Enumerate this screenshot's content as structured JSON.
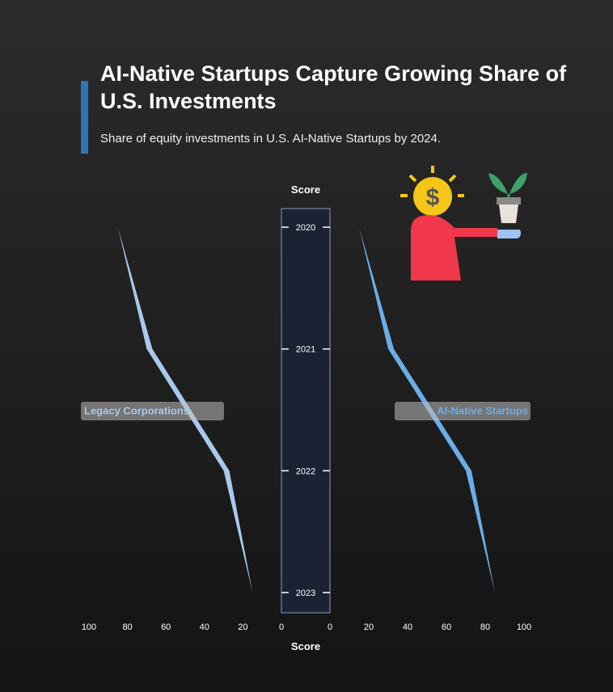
{
  "header": {
    "title": "AI-Native Startups Capture Growing Share of U.S. Investments",
    "subtitle": "Share of equity investments in U.S. AI-Native Startups by 2024."
  },
  "chart_data": {
    "type": "area",
    "layout": "mirrored-butterfly",
    "title": "AI-Native Startups Capture Growing Share of U.S. Investments",
    "subtitle": "Share of equity investments in U.S. AI-Native Startups by 2024.",
    "y_categories": [
      "2020",
      "2021",
      "2022",
      "2023"
    ],
    "axis_label": "Score",
    "left_series": {
      "name": "Legacy Corporations",
      "values": [
        85,
        70,
        30,
        15
      ],
      "color": "#a9c9ec",
      "xlim": [
        100,
        0
      ],
      "ticks": [
        100,
        80,
        60,
        40,
        20,
        0
      ]
    },
    "right_series": {
      "name": "AI-Native Startups",
      "values": [
        15,
        30,
        70,
        85
      ],
      "color": "#6aaee8",
      "xlim": [
        0,
        100
      ],
      "ticks": [
        0,
        20,
        40,
        60,
        80,
        100
      ]
    },
    "center_band_color": "#1b2233",
    "illustration": "investor-offering-plant-with-dollar-lightbulb"
  }
}
